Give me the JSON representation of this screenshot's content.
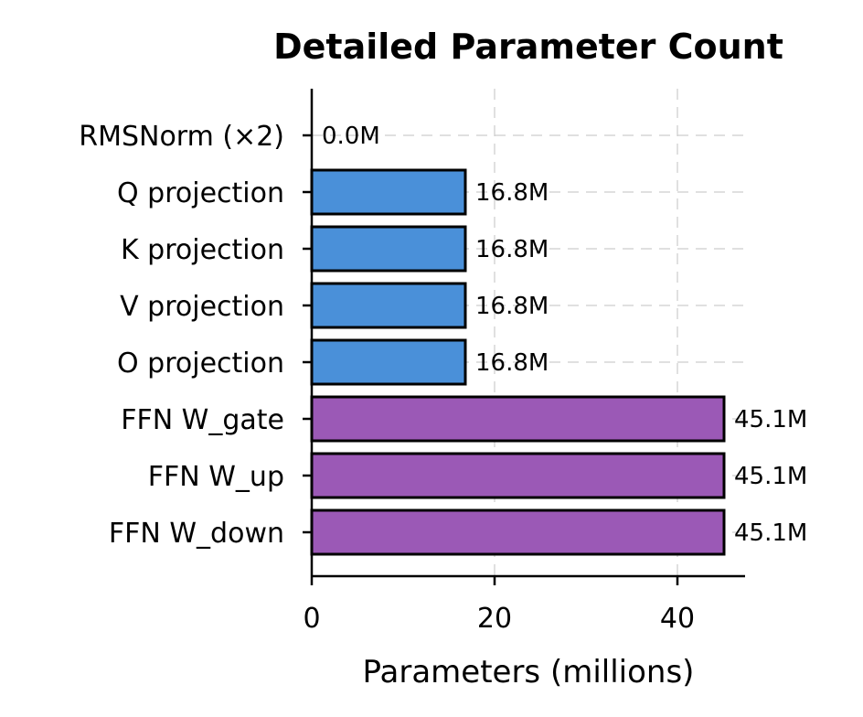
{
  "chart_data": {
    "type": "bar",
    "orientation": "horizontal",
    "title": "Detailed Parameter Count",
    "xlabel": "Parameters (millions)",
    "ylabel": "",
    "xlim": [
      0,
      47.4
    ],
    "xticks": [
      0,
      20,
      40
    ],
    "grid": true,
    "categories": [
      "RMSNorm (×2)",
      "Q projection",
      "K projection",
      "V projection",
      "O projection",
      "FFN W_gate",
      "FFN W_up",
      "FFN W_down"
    ],
    "values": [
      0.0,
      16.8,
      16.8,
      16.8,
      16.8,
      45.1,
      45.1,
      45.1
    ],
    "data_labels": [
      "0.0M",
      "16.8M",
      "16.8M",
      "16.8M",
      "16.8M",
      "45.1M",
      "45.1M",
      "45.1M"
    ],
    "colors": [
      "#4a90d9",
      "#4a90d9",
      "#4a90d9",
      "#4a90d9",
      "#4a90d9",
      "#9b59b6",
      "#9b59b6",
      "#9b59b6"
    ]
  }
}
